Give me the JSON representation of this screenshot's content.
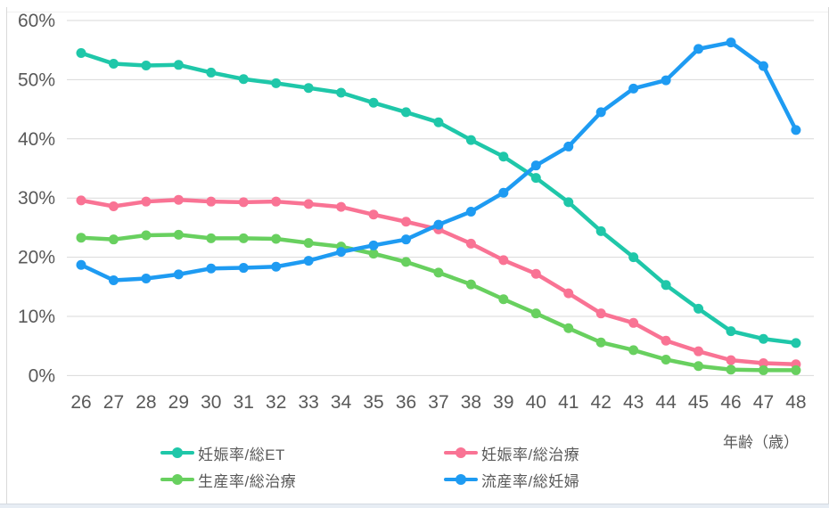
{
  "chart_data": {
    "type": "line",
    "x": [
      26,
      27,
      28,
      29,
      30,
      31,
      32,
      33,
      34,
      35,
      36,
      37,
      38,
      39,
      40,
      41,
      42,
      43,
      44,
      45,
      46,
      47,
      48
    ],
    "xlabel": "年齢（歳）",
    "ylabel": "",
    "ylim": [
      0,
      60
    ],
    "y_tick_labels": [
      "0%",
      "10%",
      "20%",
      "30%",
      "40%",
      "50%",
      "60%"
    ],
    "grid": true,
    "legend_position": "bottom",
    "series": [
      {
        "name": "妊娠率/総ET",
        "color": "#1fc7a9",
        "values": [
          54.5,
          52.7,
          52.4,
          52.5,
          51.2,
          50.1,
          49.4,
          48.6,
          47.8,
          46.1,
          44.5,
          42.8,
          39.8,
          37.0,
          33.4,
          29.3,
          24.4,
          20.0,
          15.3,
          11.3,
          7.5,
          6.2,
          5.5
        ]
      },
      {
        "name": "妊娠率/総治療",
        "color": "#f97394",
        "values": [
          29.6,
          28.6,
          29.4,
          29.7,
          29.4,
          29.3,
          29.4,
          29.0,
          28.5,
          27.2,
          26.0,
          24.7,
          22.3,
          19.5,
          17.2,
          13.9,
          10.5,
          8.9,
          5.9,
          4.1,
          2.6,
          2.1,
          1.9
        ]
      },
      {
        "name": "生産率/総治療",
        "color": "#68d05f",
        "values": [
          23.3,
          23.0,
          23.7,
          23.8,
          23.2,
          23.2,
          23.1,
          22.4,
          21.8,
          20.6,
          19.2,
          17.4,
          15.4,
          12.9,
          10.5,
          8.0,
          5.6,
          4.3,
          2.7,
          1.6,
          1.0,
          0.9,
          0.9
        ]
      },
      {
        "name": "流産率/総妊婦",
        "color": "#1e9bf2",
        "values": [
          18.7,
          16.1,
          16.4,
          17.1,
          18.1,
          18.2,
          18.4,
          19.4,
          20.9,
          22.0,
          23.0,
          25.5,
          27.7,
          30.9,
          35.5,
          38.7,
          44.5,
          48.5,
          49.9,
          55.2,
          56.3,
          52.3,
          41.5
        ]
      }
    ],
    "colors": {
      "grid_line": "#d9d9d9",
      "tick_label": "#595959",
      "axis_title": "#595959"
    }
  }
}
